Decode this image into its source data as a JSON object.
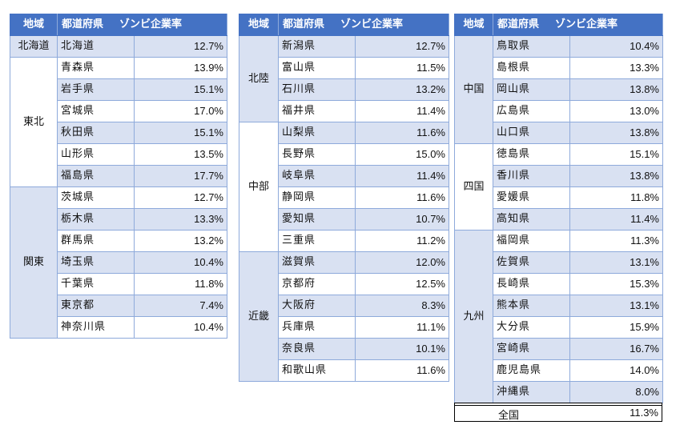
{
  "headers": {
    "region": "地域",
    "prefecture": "都道府県",
    "rate": "ゾンビ企業率"
  },
  "tables": [
    {
      "groups": [
        {
          "region": "北海道",
          "rows": [
            [
              "北海道",
              "12.7%"
            ]
          ]
        },
        {
          "region": "東北",
          "rows": [
            [
              "青森県",
              "13.9%"
            ],
            [
              "岩手県",
              "15.1%"
            ],
            [
              "宮城県",
              "17.0%"
            ],
            [
              "秋田県",
              "15.1%"
            ],
            [
              "山形県",
              "13.5%"
            ],
            [
              "福島県",
              "17.7%"
            ]
          ]
        },
        {
          "region": "関東",
          "rows": [
            [
              "茨城県",
              "12.7%"
            ],
            [
              "栃木県",
              "13.3%"
            ],
            [
              "群馬県",
              "13.2%"
            ],
            [
              "埼玉県",
              "10.4%"
            ],
            [
              "千葉県",
              "11.8%"
            ],
            [
              "東京都",
              "7.4%"
            ],
            [
              "神奈川県",
              "10.4%"
            ]
          ]
        }
      ]
    },
    {
      "groups": [
        {
          "region": "北陸",
          "rows": [
            [
              "新潟県",
              "12.7%"
            ],
            [
              "富山県",
              "11.5%"
            ],
            [
              "石川県",
              "13.2%"
            ],
            [
              "福井県",
              "11.4%"
            ]
          ]
        },
        {
          "region": "中部",
          "rows": [
            [
              "山梨県",
              "11.6%"
            ],
            [
              "長野県",
              "15.0%"
            ],
            [
              "岐阜県",
              "11.4%"
            ],
            [
              "静岡県",
              "11.6%"
            ],
            [
              "愛知県",
              "10.7%"
            ],
            [
              "三重県",
              "11.2%"
            ]
          ]
        },
        {
          "region": "近畿",
          "rows": [
            [
              "滋賀県",
              "12.0%"
            ],
            [
              "京都府",
              "12.5%"
            ],
            [
              "大阪府",
              "8.3%"
            ],
            [
              "兵庫県",
              "11.1%"
            ],
            [
              "奈良県",
              "10.1%"
            ],
            [
              "和歌山県",
              "11.6%"
            ]
          ]
        }
      ]
    },
    {
      "groups": [
        {
          "region": "中国",
          "rows": [
            [
              "鳥取県",
              "10.4%"
            ],
            [
              "島根県",
              "13.3%"
            ],
            [
              "岡山県",
              "13.8%"
            ],
            [
              "広島県",
              "13.0%"
            ],
            [
              "山口県",
              "13.8%"
            ]
          ]
        },
        {
          "region": "四国",
          "rows": [
            [
              "徳島県",
              "15.1%"
            ],
            [
              "香川県",
              "13.8%"
            ],
            [
              "愛媛県",
              "11.8%"
            ],
            [
              "高知県",
              "11.4%"
            ]
          ]
        },
        {
          "region": "九州",
          "rows": [
            [
              "福岡県",
              "11.3%"
            ],
            [
              "佐賀県",
              "13.1%"
            ],
            [
              "長崎県",
              "15.3%"
            ],
            [
              "熊本県",
              "13.1%"
            ],
            [
              "大分県",
              "15.9%"
            ],
            [
              "宮崎県",
              "16.7%"
            ],
            [
              "鹿児島県",
              "14.0%"
            ],
            [
              "沖縄県",
              "8.0%"
            ]
          ]
        }
      ]
    }
  ],
  "total": {
    "label": "全国",
    "value": "11.3%"
  },
  "colors": {
    "header": "#4472c4",
    "band": "#d9e1f2",
    "border": "#8eaadb"
  }
}
